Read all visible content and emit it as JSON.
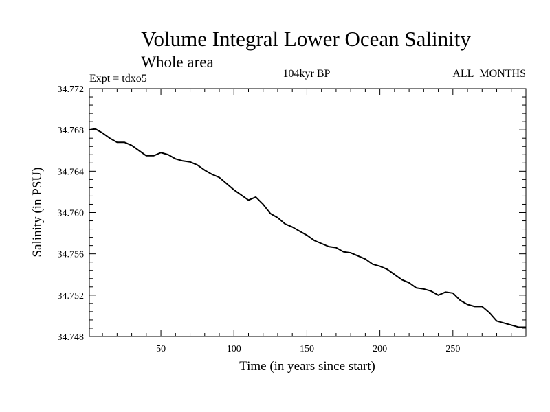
{
  "chart_data": {
    "type": "line",
    "title": "Volume Integral Lower Ocean Salinity",
    "subtitle": "Whole area",
    "annotations": {
      "left": "Expt = tdxo5",
      "center": "104kyr BP",
      "right": "ALL_MONTHS"
    },
    "xlabel": "Time (in years since start)",
    "ylabel": "Salinity (in PSU)",
    "xlim": [
      1,
      300
    ],
    "ylim": [
      34.748,
      34.772
    ],
    "xticks": [
      50,
      100,
      150,
      200,
      250
    ],
    "xtick_labels": [
      "50",
      "100",
      "150",
      "200",
      "250"
    ],
    "yticks": [
      34.748,
      34.752,
      34.756,
      34.76,
      34.764,
      34.768,
      34.772
    ],
    "ytick_labels": [
      "34.748",
      "34.752",
      "34.756",
      "34.760",
      "34.764",
      "34.768",
      "34.772"
    ],
    "grid": false,
    "series": [
      {
        "color": "#000000",
        "x": [
          1,
          5,
          10,
          15,
          20,
          25,
          30,
          35,
          40,
          45,
          50,
          55,
          60,
          65,
          70,
          75,
          80,
          85,
          90,
          95,
          100,
          105,
          110,
          115,
          120,
          125,
          130,
          135,
          140,
          145,
          150,
          155,
          160,
          165,
          170,
          175,
          180,
          185,
          190,
          195,
          200,
          205,
          210,
          215,
          220,
          225,
          230,
          235,
          240,
          245,
          250,
          255,
          260,
          265,
          270,
          275,
          280,
          285,
          290,
          295,
          300
        ],
        "y": [
          34.768,
          34.7681,
          34.7677,
          34.7672,
          34.7668,
          34.7668,
          34.7665,
          34.766,
          34.7655,
          34.7655,
          34.7658,
          34.7656,
          34.7652,
          34.765,
          34.7649,
          34.7646,
          34.7641,
          34.7637,
          34.7634,
          34.7628,
          34.7622,
          34.7617,
          34.7612,
          34.7615,
          34.7608,
          34.7599,
          34.7595,
          34.7589,
          34.7586,
          34.7582,
          34.7578,
          34.7573,
          34.757,
          34.7567,
          34.7566,
          34.7562,
          34.7561,
          34.7558,
          34.7555,
          34.755,
          34.7548,
          34.7545,
          34.754,
          34.7535,
          34.7532,
          34.7527,
          34.7526,
          34.7524,
          34.752,
          34.7523,
          34.7522,
          34.7515,
          34.7511,
          34.7509,
          34.7509,
          34.7503,
          34.7495,
          34.7493,
          34.7491,
          34.7489,
          34.7489
        ]
      }
    ]
  }
}
